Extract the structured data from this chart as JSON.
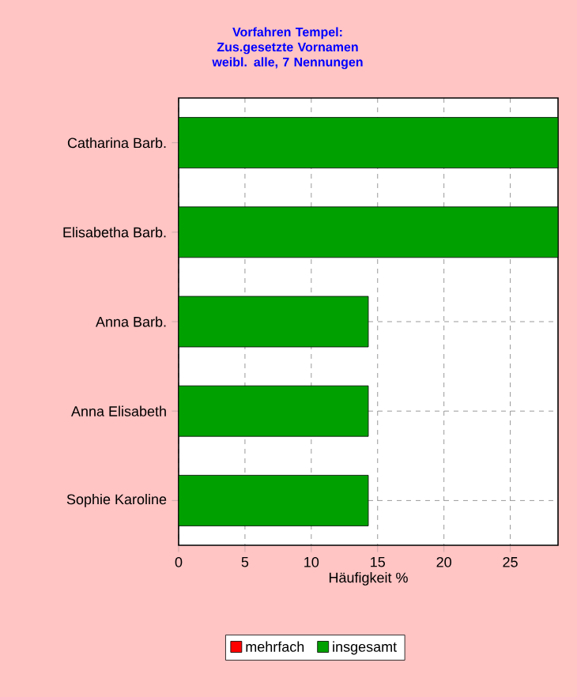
{
  "chart_data": {
    "type": "bar",
    "orientation": "horizontal",
    "title": "Vorfahren Tempel:",
    "subtitle": "Zus.gesetzte Vornamen weibl. alle, 7 Nennungen",
    "xlabel": "Häufigkeit %",
    "categories": [
      "Catharina Barb.",
      "Elisabetha Barb.",
      "Anna Barb.",
      "Anna Elisabeth",
      "Sophie Karoline"
    ],
    "series": [
      {
        "name": "mehrfach",
        "color": "#ff0000",
        "values": [
          null,
          null,
          null,
          null,
          null
        ]
      },
      {
        "name": "insgesamt",
        "color": "#00a000",
        "values": [
          28.6,
          28.6,
          14.3,
          14.3,
          14.3
        ]
      }
    ],
    "xlim": [
      0,
      28.6
    ],
    "xticks": [
      0,
      5,
      10,
      15,
      20,
      25
    ],
    "grid": true,
    "legend": "bottom"
  }
}
